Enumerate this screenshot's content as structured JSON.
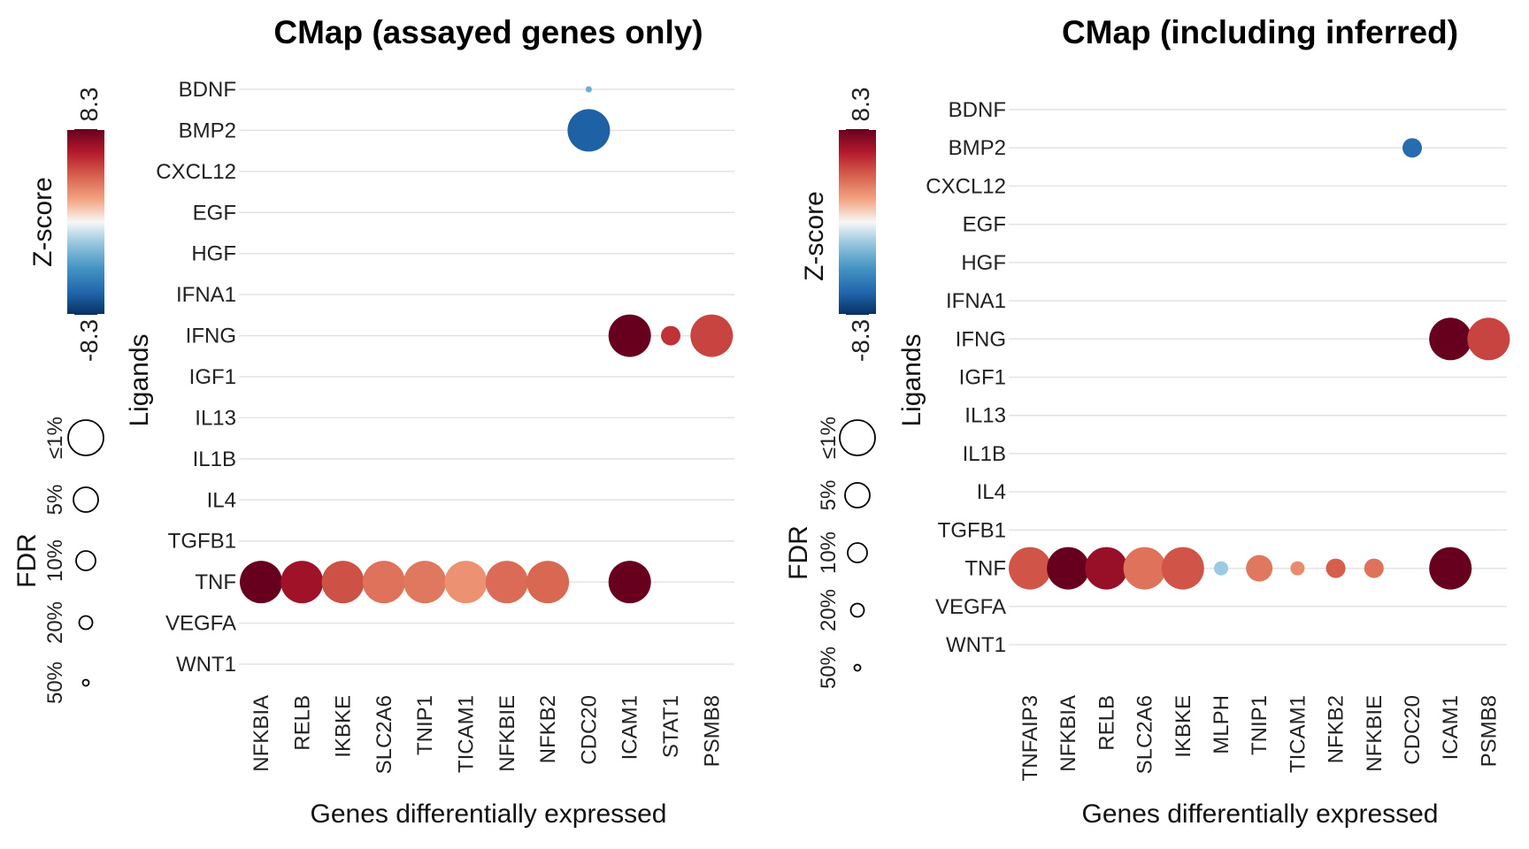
{
  "chart_data": [
    {
      "type": "scatter",
      "title": "CMap (assayed genes only)",
      "xlabel": "Genes differentially expressed",
      "ylabel": "Ligands",
      "y_categories": [
        "BDNF",
        "BMP2",
        "CXCL12",
        "EGF",
        "HGF",
        "IFNA1",
        "IFNG",
        "IGF1",
        "IL13",
        "IL1B",
        "IL4",
        "TGFB1",
        "TNF",
        "VEGFA",
        "WNT1"
      ],
      "x_categories": [
        "NFKBIA",
        "RELB",
        "IKBKE",
        "SLC2A6",
        "TNIP1",
        "TICAM1",
        "NFKBIE",
        "NFKB2",
        "CDC20",
        "ICAM1",
        "STAT1",
        "PSMB8"
      ],
      "points": [
        {
          "x": "CDC20",
          "y": "BDNF",
          "z": -3.0,
          "fdr": 50
        },
        {
          "x": "CDC20",
          "y": "BMP2",
          "z": -6.5,
          "fdr": 1
        },
        {
          "x": "ICAM1",
          "y": "IFNG",
          "z": 8.3,
          "fdr": 1
        },
        {
          "x": "STAT1",
          "y": "IFNG",
          "z": 5.5,
          "fdr": 10
        },
        {
          "x": "PSMB8",
          "y": "IFNG",
          "z": 5.0,
          "fdr": 1
        },
        {
          "x": "NFKBIA",
          "y": "TNF",
          "z": 8.3,
          "fdr": 1
        },
        {
          "x": "RELB",
          "y": "TNF",
          "z": 6.8,
          "fdr": 1
        },
        {
          "x": "IKBKE",
          "y": "TNF",
          "z": 4.6,
          "fdr": 1
        },
        {
          "x": "SLC2A6",
          "y": "TNF",
          "z": 3.6,
          "fdr": 1
        },
        {
          "x": "TNIP1",
          "y": "TNF",
          "z": 3.4,
          "fdr": 1
        },
        {
          "x": "TICAM1",
          "y": "TNF",
          "z": 2.6,
          "fdr": 1
        },
        {
          "x": "NFKBIE",
          "y": "TNF",
          "z": 3.8,
          "fdr": 1
        },
        {
          "x": "NFKB2",
          "y": "TNF",
          "z": 3.9,
          "fdr": 1
        },
        {
          "x": "ICAM1",
          "y": "TNF",
          "z": 8.3,
          "fdr": 1
        }
      ],
      "colorbar": {
        "title": "Z-score",
        "min_label": "-8.3",
        "max_label": "8.3",
        "min": -8.3,
        "max": 8.3
      },
      "size_legend": {
        "title": "FDR",
        "levels": [
          {
            "label": "≤1%",
            "fdr": 1
          },
          {
            "label": "5%",
            "fdr": 5
          },
          {
            "label": "10%",
            "fdr": 10
          },
          {
            "label": "20%",
            "fdr": 20
          },
          {
            "label": "50%",
            "fdr": 50
          }
        ]
      }
    },
    {
      "type": "scatter",
      "title": "CMap (including inferred)",
      "xlabel": "Genes differentially expressed",
      "ylabel": "Ligands",
      "y_categories": [
        "BDNF",
        "BMP2",
        "CXCL12",
        "EGF",
        "HGF",
        "IFNA1",
        "IFNG",
        "IGF1",
        "IL13",
        "IL1B",
        "IL4",
        "TGFB1",
        "TNF",
        "VEGFA",
        "WNT1"
      ],
      "x_categories": [
        "TNFAIP3",
        "NFKBIA",
        "RELB",
        "SLC2A6",
        "IKBKE",
        "MLPH",
        "TNIP1",
        "TICAM1",
        "NFKB2",
        "NFKBIE",
        "CDC20",
        "ICAM1",
        "PSMB8"
      ],
      "points": [
        {
          "x": "CDC20",
          "y": "BMP2",
          "z": -6.0,
          "fdr": 10
        },
        {
          "x": "ICAM1",
          "y": "IFNG",
          "z": 8.3,
          "fdr": 1
        },
        {
          "x": "PSMB8",
          "y": "IFNG",
          "z": 5.0,
          "fdr": 1
        },
        {
          "x": "TNFAIP3",
          "y": "TNF",
          "z": 4.5,
          "fdr": 1
        },
        {
          "x": "NFKBIA",
          "y": "TNF",
          "z": 8.3,
          "fdr": 1
        },
        {
          "x": "RELB",
          "y": "TNF",
          "z": 7.0,
          "fdr": 1
        },
        {
          "x": "SLC2A6",
          "y": "TNF",
          "z": 3.6,
          "fdr": 1
        },
        {
          "x": "IKBKE",
          "y": "TNF",
          "z": 4.5,
          "fdr": 1
        },
        {
          "x": "MLPH",
          "y": "TNF",
          "z": -1.8,
          "fdr": 20
        },
        {
          "x": "TNIP1",
          "y": "TNF",
          "z": 3.4,
          "fdr": 5
        },
        {
          "x": "TICAM1",
          "y": "TNF",
          "z": 2.8,
          "fdr": 20
        },
        {
          "x": "NFKB2",
          "y": "TNF",
          "z": 4.2,
          "fdr": 10
        },
        {
          "x": "NFKBIE",
          "y": "TNF",
          "z": 3.6,
          "fdr": 10
        },
        {
          "x": "ICAM1",
          "y": "TNF",
          "z": 8.3,
          "fdr": 1
        }
      ],
      "colorbar": {
        "title": "Z-score",
        "min_label": "-8.3",
        "max_label": "8.3",
        "min": -8.3,
        "max": 8.3
      },
      "size_legend": {
        "title": "FDR",
        "levels": [
          {
            "label": "≤1%",
            "fdr": 1
          },
          {
            "label": "5%",
            "fdr": 5
          },
          {
            "label": "10%",
            "fdr": 10
          },
          {
            "label": "20%",
            "fdr": 20
          },
          {
            "label": "50%",
            "fdr": 50
          }
        ]
      }
    }
  ]
}
